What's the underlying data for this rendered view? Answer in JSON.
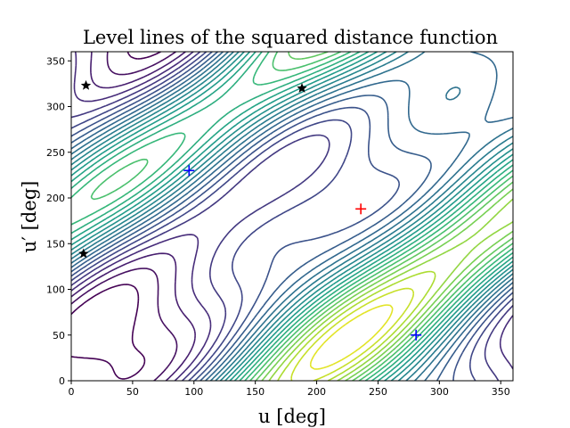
{
  "chart_data": {
    "type": "contour",
    "title": "Level lines of the squared distance function",
    "xlabel": "u [deg]",
    "ylabel": "u′ [deg]",
    "xlim": [
      0,
      360
    ],
    "ylim": [
      0,
      360
    ],
    "xticks": [
      0,
      50,
      100,
      150,
      200,
      250,
      300,
      350
    ],
    "yticks": [
      0,
      50,
      100,
      150,
      200,
      250,
      300,
      350
    ],
    "grid": false,
    "legend": "none",
    "colormap": "viridis",
    "contour_levels": 24,
    "markers": [
      {
        "kind": "star",
        "color": "#000000",
        "x": 12,
        "y": 323
      },
      {
        "kind": "star",
        "color": "#000000",
        "x": 188,
        "y": 320
      },
      {
        "kind": "star",
        "color": "#000000",
        "x": 10,
        "y": 139
      },
      {
        "kind": "plus",
        "color": "#0000ff",
        "x": 96,
        "y": 230
      },
      {
        "kind": "plus",
        "color": "#ff0000",
        "x": 236,
        "y": 188
      },
      {
        "kind": "plus",
        "color": "#0000ff",
        "x": 281,
        "y": 50
      }
    ]
  }
}
